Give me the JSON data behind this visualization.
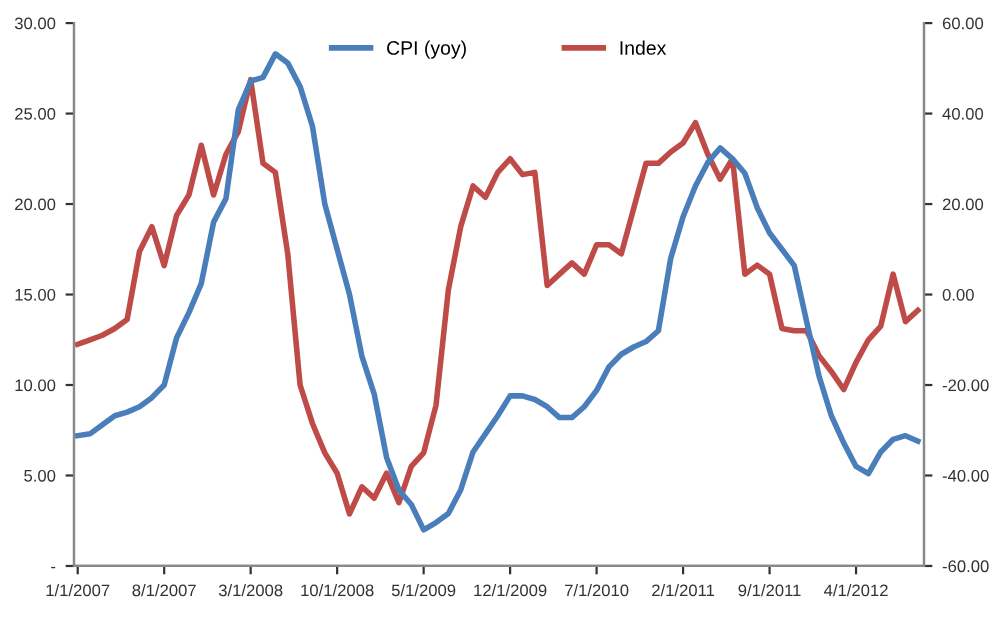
{
  "chart_data": {
    "type": "line",
    "categories": [
      "1/1/2007",
      null,
      null,
      null,
      null,
      null,
      null,
      "8/1/2007",
      null,
      null,
      null,
      null,
      null,
      null,
      "3/1/2008",
      null,
      null,
      null,
      null,
      null,
      null,
      "10/1/2008",
      null,
      null,
      null,
      null,
      null,
      null,
      "5/1/2009",
      null,
      null,
      null,
      null,
      null,
      null,
      "12/1/2009",
      null,
      null,
      null,
      null,
      null,
      null,
      "7/1/2010",
      null,
      null,
      null,
      null,
      null,
      null,
      "2/1/2011",
      null,
      null,
      null,
      null,
      null,
      null,
      "9/1/2011",
      null,
      null,
      null,
      null,
      null,
      null,
      "4/1/2012",
      null,
      null,
      null,
      null,
      null
    ],
    "series": [
      {
        "name": "CPI (yoy)",
        "color": "#4a7ebb",
        "values": [
          7.2,
          7.3,
          7.8,
          8.3,
          8.5,
          8.8,
          9.3,
          10.0,
          12.6,
          14.0,
          15.6,
          19.0,
          20.3,
          25.2,
          26.8,
          27.0,
          28.3,
          27.8,
          26.5,
          24.3,
          20.0,
          17.5,
          15.0,
          11.6,
          9.5,
          6.0,
          4.2,
          3.4,
          2.0,
          2.4,
          2.9,
          4.2,
          6.3,
          7.3,
          8.3,
          9.4,
          9.4,
          9.2,
          8.8,
          8.2,
          8.2,
          8.8,
          9.7,
          11.0,
          11.7,
          12.1,
          12.4,
          13.0,
          17.0,
          19.3,
          21.0,
          22.3,
          23.1,
          22.5,
          21.7,
          19.8,
          18.4,
          17.5,
          16.6,
          13.5,
          10.5,
          8.3,
          6.8,
          5.5,
          5.1,
          6.3,
          7.0,
          7.2,
          6.9
        ]
      },
      {
        "name": "Index",
        "color": "#be4b48",
        "axis": "y2",
        "values": [
          -11,
          -10,
          -9,
          -7.5,
          -5.5,
          9.5,
          15,
          6.4,
          17.5,
          22,
          33,
          22,
          31,
          36,
          47.5,
          29,
          27,
          9,
          -20,
          -28.5,
          -35,
          -39.5,
          -48.5,
          -42.5,
          -45,
          -39.5,
          -46,
          -38,
          -35,
          -24.5,
          1,
          15,
          24,
          21.5,
          27,
          30,
          26.5,
          27,
          2,
          4.5,
          7,
          4.5,
          11,
          11,
          9,
          19,
          29,
          29,
          31.5,
          33.5,
          38,
          31,
          25.5,
          30,
          4.5,
          6.5,
          4.5,
          -7.5,
          -8,
          -8,
          -13.5,
          -17,
          -21,
          -15,
          -10,
          -7,
          4.5,
          -6,
          -3.5
        ]
      }
    ],
    "ylim": [
      0,
      30
    ],
    "yticks": [
      {
        "value": 0,
        "label": "-"
      },
      {
        "value": 5,
        "label": "5.00"
      },
      {
        "value": 10,
        "label": "10.00"
      },
      {
        "value": 15,
        "label": "15.00"
      },
      {
        "value": 20,
        "label": "20.00"
      },
      {
        "value": 25,
        "label": "25.00"
      },
      {
        "value": 30,
        "label": "30.00"
      }
    ],
    "y2lim": [
      -60,
      60
    ],
    "y2ticks": [
      {
        "value": -60,
        "label": "-60.00"
      },
      {
        "value": -40,
        "label": "-40.00"
      },
      {
        "value": -20,
        "label": "-20.00"
      },
      {
        "value": 0,
        "label": "0.00"
      },
      {
        "value": 20,
        "label": "20.00"
      },
      {
        "value": 40,
        "label": "40.00"
      },
      {
        "value": 60,
        "label": "60.00"
      }
    ],
    "legend": "top",
    "grid": false,
    "marker": "none",
    "line_style": "solid"
  }
}
